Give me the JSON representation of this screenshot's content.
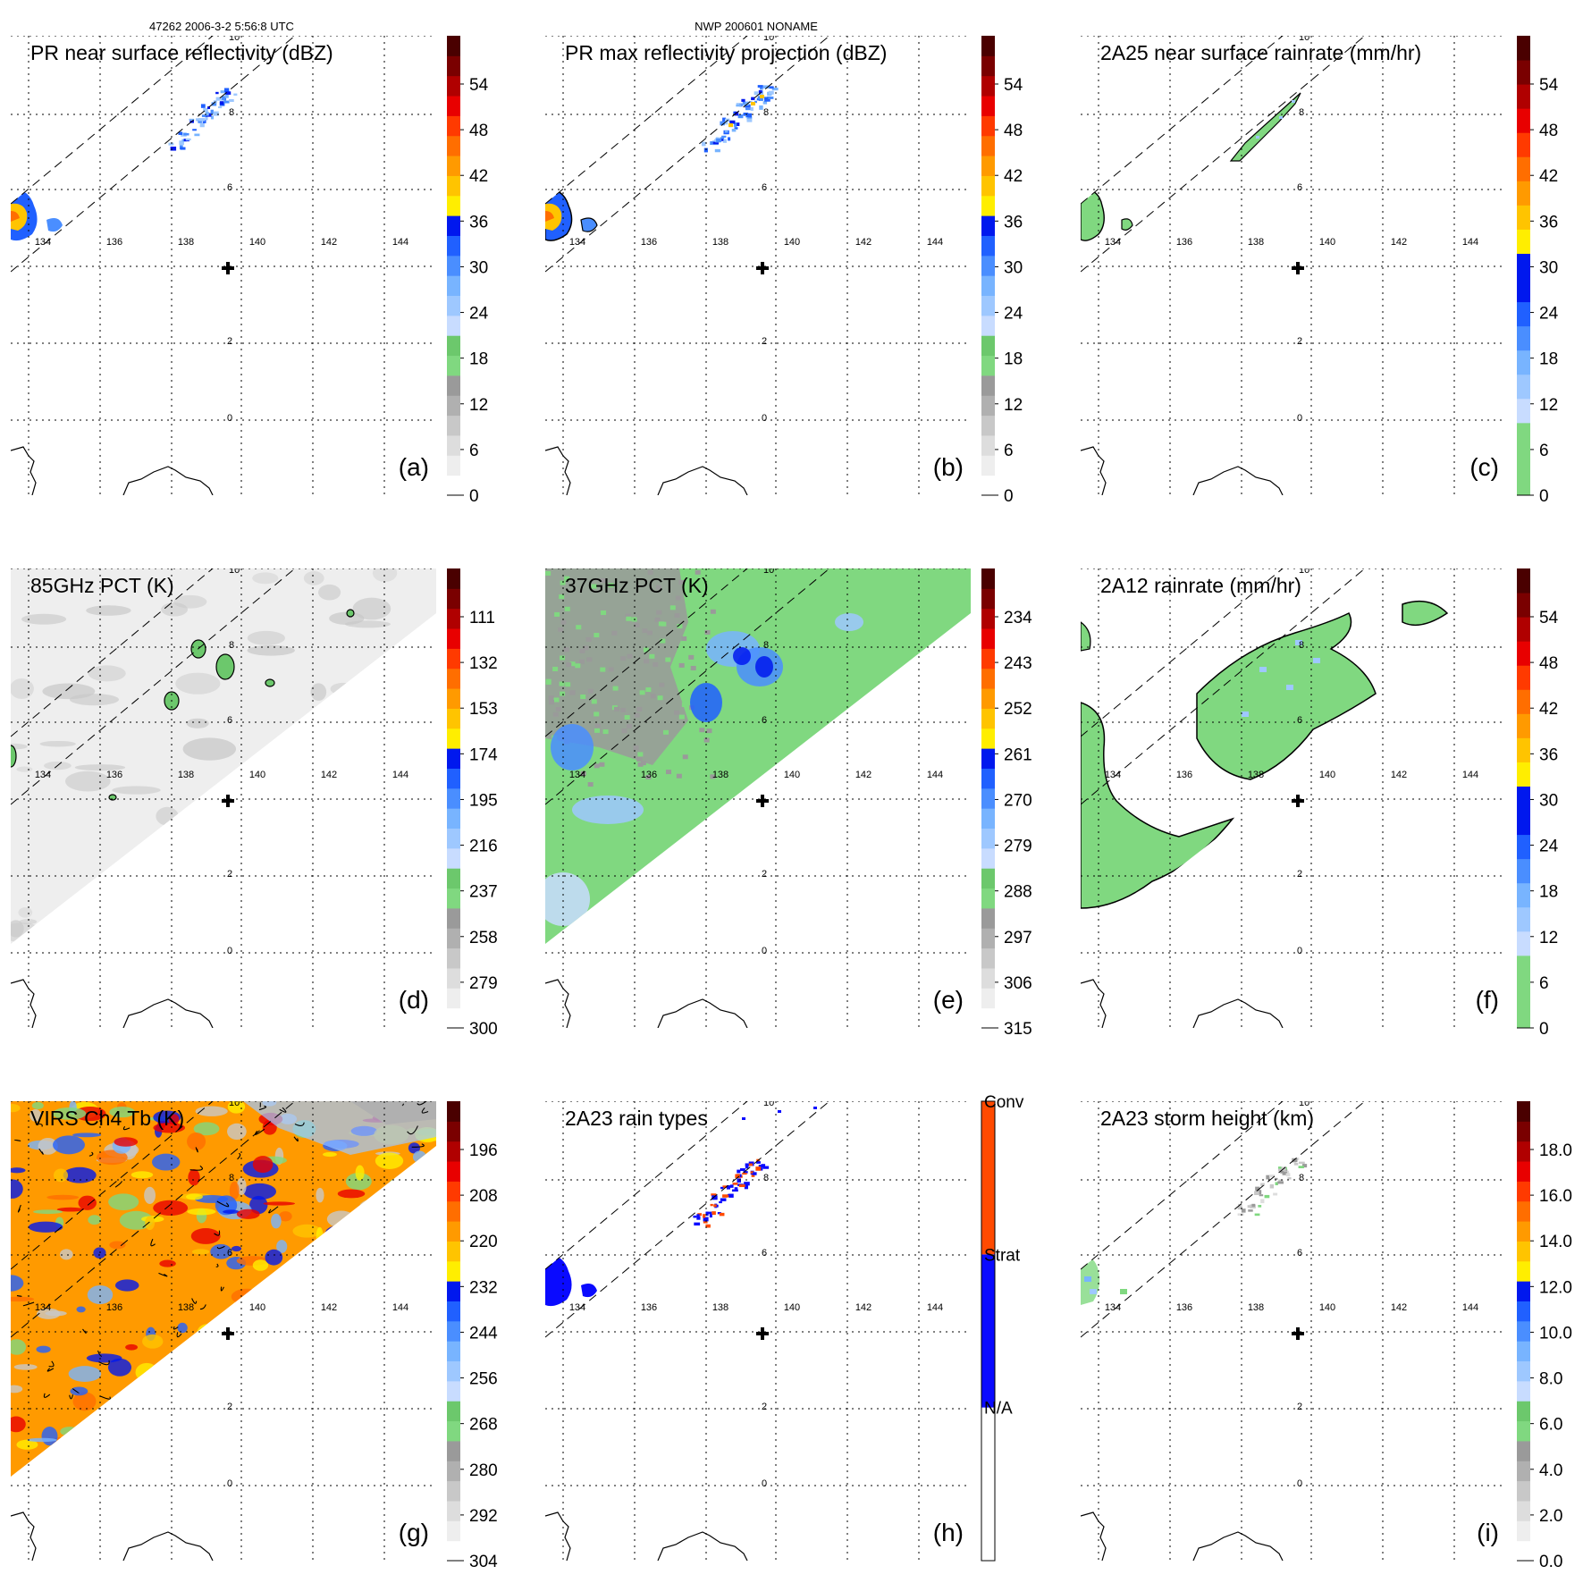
{
  "header": {
    "left": "47262 2006-3-2 5:56:8 UTC",
    "center": "NWP 200601 NONAME"
  },
  "grid_labels": {
    "lon": [
      "134",
      "136",
      "138",
      "140",
      "142",
      "144"
    ],
    "lat": [
      "10",
      "8",
      "6",
      "2",
      "0"
    ]
  },
  "panels": [
    {
      "title": "PR near surface reflectivity (dBZ)",
      "label": "(a)",
      "swath": "pr",
      "field": "pr_surface",
      "ticks": [
        "54",
        "48",
        "42",
        "36",
        "30",
        "24",
        "18",
        "12",
        "6",
        "0"
      ],
      "colors": [
        "#ffffff",
        "#eeeeee",
        "#dddddd",
        "#c8c8c8",
        "#b0b0b0",
        "#9a9a9a",
        "#80d880",
        "#6cc86c",
        "#c8dcff",
        "#9ec8ff",
        "#78b4ff",
        "#4a8eff",
        "#2060ff",
        "#0018ee",
        "#ffee00",
        "#ffc400",
        "#ff9a00",
        "#ff6e00",
        "#ff3a00",
        "#e80000",
        "#b00000",
        "#7a0000",
        "#4a0000"
      ]
    },
    {
      "title": "PR max reflectivity projection (dBZ)",
      "label": "(b)",
      "swath": "pr",
      "field": "pr_max",
      "ticks": [
        "54",
        "48",
        "42",
        "36",
        "30",
        "24",
        "18",
        "12",
        "6",
        "0"
      ],
      "colors": [
        "#ffffff",
        "#eeeeee",
        "#dddddd",
        "#c8c8c8",
        "#b0b0b0",
        "#9a9a9a",
        "#80d880",
        "#6cc86c",
        "#c8dcff",
        "#9ec8ff",
        "#78b4ff",
        "#4a8eff",
        "#2060ff",
        "#0018ee",
        "#ffee00",
        "#ffc400",
        "#ff9a00",
        "#ff6e00",
        "#ff3a00",
        "#e80000",
        "#b00000",
        "#7a0000",
        "#4a0000"
      ]
    },
    {
      "title": "2A25 near surface rainrate (mm/hr)",
      "label": "(c)",
      "swath": "pr",
      "field": "pr_rain",
      "ticks": [
        "54",
        "48",
        "42",
        "36",
        "30",
        "24",
        "18",
        "12",
        "6",
        "0"
      ],
      "colors": [
        "#80d880",
        "#80d880",
        "#80d880",
        "#c8dcff",
        "#9ec8ff",
        "#78b4ff",
        "#4a8eff",
        "#2060ff",
        "#0018ee",
        "#0018ee",
        "#ffee00",
        "#ffc400",
        "#ff9a00",
        "#ff6e00",
        "#ff3a00",
        "#e80000",
        "#b00000",
        "#7a0000",
        "#4a0000"
      ]
    },
    {
      "title": "85GHz PCT (K)",
      "label": "(d)",
      "swath": "tmi",
      "field": "pct85",
      "ticks": [
        "111",
        "132",
        "153",
        "174",
        "195",
        "216",
        "237",
        "258",
        "279",
        "300"
      ],
      "colors": [
        "#ffffff",
        "#eeeeee",
        "#dddddd",
        "#c8c8c8",
        "#b0b0b0",
        "#9a9a9a",
        "#80d880",
        "#6cc86c",
        "#c8dcff",
        "#9ec8ff",
        "#78b4ff",
        "#4a8eff",
        "#2060ff",
        "#0018ee",
        "#ffee00",
        "#ffc400",
        "#ff9a00",
        "#ff6e00",
        "#ff3a00",
        "#e80000",
        "#b00000",
        "#7a0000",
        "#4a0000"
      ]
    },
    {
      "title": "37GHz PCT (K)",
      "label": "(e)",
      "swath": "tmi",
      "field": "pct37",
      "ticks": [
        "234",
        "243",
        "252",
        "261",
        "270",
        "279",
        "288",
        "297",
        "306",
        "315"
      ],
      "colors": [
        "#ffffff",
        "#eeeeee",
        "#dddddd",
        "#c8c8c8",
        "#b0b0b0",
        "#9a9a9a",
        "#80d880",
        "#6cc86c",
        "#c8dcff",
        "#9ec8ff",
        "#78b4ff",
        "#4a8eff",
        "#2060ff",
        "#0018ee",
        "#ffee00",
        "#ffc400",
        "#ff9a00",
        "#ff6e00",
        "#ff3a00",
        "#e80000",
        "#b00000",
        "#7a0000",
        "#4a0000"
      ]
    },
    {
      "title": "2A12 rainrate (mm/hr)",
      "label": "(f)",
      "swath": "tmi",
      "field": "tmi_rain",
      "ticks": [
        "54",
        "48",
        "42",
        "36",
        "30",
        "24",
        "18",
        "12",
        "6",
        "0"
      ],
      "colors": [
        "#80d880",
        "#80d880",
        "#80d880",
        "#c8dcff",
        "#9ec8ff",
        "#78b4ff",
        "#4a8eff",
        "#2060ff",
        "#0018ee",
        "#0018ee",
        "#ffee00",
        "#ffc400",
        "#ff9a00",
        "#ff6e00",
        "#ff3a00",
        "#e80000",
        "#b00000",
        "#7a0000",
        "#4a0000"
      ]
    },
    {
      "title": "VIRS Ch4 Tb (K)",
      "label": "(g)",
      "swath": "tmi",
      "field": "virs",
      "ticks": [
        "196",
        "208",
        "220",
        "232",
        "244",
        "256",
        "268",
        "280",
        "292",
        "304"
      ],
      "colors": [
        "#ffffff",
        "#eeeeee",
        "#dddddd",
        "#c8c8c8",
        "#b0b0b0",
        "#9a9a9a",
        "#80d880",
        "#6cc86c",
        "#c8dcff",
        "#9ec8ff",
        "#78b4ff",
        "#4a8eff",
        "#2060ff",
        "#0018ee",
        "#ffee00",
        "#ffc400",
        "#ff9a00",
        "#ff6e00",
        "#ff3a00",
        "#e80000",
        "#b00000",
        "#7a0000",
        "#4a0000"
      ]
    },
    {
      "title": "2A23 rain types",
      "label": "(h)",
      "swath": "pr",
      "field": "raintype",
      "ticks": [
        "Conv",
        "Strat",
        "N/A"
      ],
      "type_colors": [
        "#ffffff",
        "#0a0aff",
        "#ff4a00"
      ]
    },
    {
      "title": "2A23 storm height (km)",
      "label": "(i)",
      "swath": "pr",
      "field": "height",
      "ticks": [
        "18.0",
        "16.0",
        "14.0",
        "12.0",
        "10.0",
        "8.0",
        "6.0",
        "4.0",
        "2.0",
        "0.0"
      ],
      "colors": [
        "#ffffff",
        "#eeeeee",
        "#dddddd",
        "#c8c8c8",
        "#b0b0b0",
        "#9a9a9a",
        "#80d880",
        "#6cc86c",
        "#c8dcff",
        "#9ec8ff",
        "#78b4ff",
        "#4a8eff",
        "#2060ff",
        "#0018ee",
        "#ffee00",
        "#ffc400",
        "#ff9a00",
        "#ff6e00",
        "#ff3a00",
        "#e80000",
        "#b00000",
        "#7a0000",
        "#4a0000"
      ]
    }
  ]
}
